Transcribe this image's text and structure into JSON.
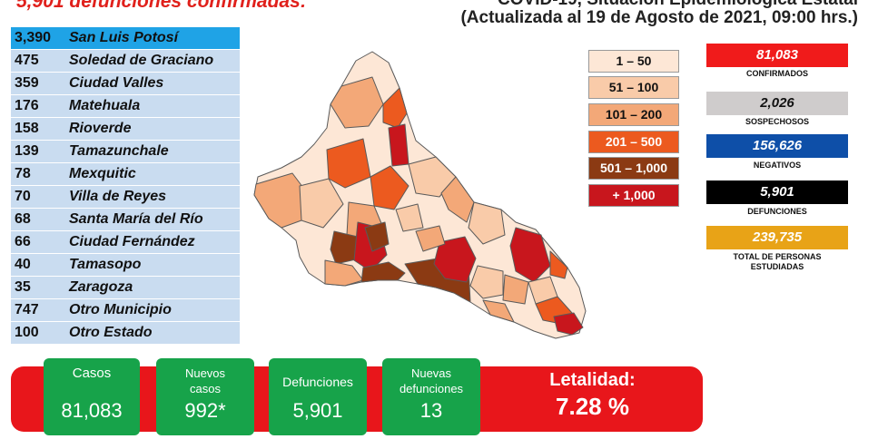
{
  "header": {
    "left_title": "5,901 defunciones confirmadas:",
    "right_line1": "COVID-19, Situación Epidemiológica Estatal",
    "right_line2": "(Actualizada al 19 de Agosto de 2021, 09:00 hrs.)"
  },
  "deaths_by_municipality": [
    {
      "count": "3,390",
      "name": "San Luis Potosí"
    },
    {
      "count": "475",
      "name": "Soledad de Graciano"
    },
    {
      "count": "359",
      "name": "Ciudad Valles"
    },
    {
      "count": "176",
      "name": "Matehuala"
    },
    {
      "count": "158",
      "name": "Rioverde"
    },
    {
      "count": "139",
      "name": "Tamazunchale"
    },
    {
      "count": "78",
      "name": "Mexquitic"
    },
    {
      "count": "70",
      "name": "Villa de Reyes"
    },
    {
      "count": "68",
      "name": "Santa María del Río"
    },
    {
      "count": "66",
      "name": "Ciudad Fernández"
    },
    {
      "count": "40",
      "name": "Tamasopo"
    },
    {
      "count": "35",
      "name": "Zaragoza"
    },
    {
      "count": "747",
      "name": "Otro Municipio"
    },
    {
      "count": "100",
      "name": "Otro Estado"
    }
  ],
  "legend": [
    {
      "label": "1 – 50",
      "color": "#fde7d6",
      "text_color": "#111111"
    },
    {
      "label": "51 – 100",
      "color": "#f9cba9",
      "text_color": "#111111"
    },
    {
      "label": "101 – 200",
      "color": "#f3a878",
      "text_color": "#111111"
    },
    {
      "label": "201 – 500",
      "color": "#ec5a1f",
      "text_color": "#ffffff"
    },
    {
      "label": "501 – 1,000",
      "color": "#8b3a13",
      "text_color": "#ffffff"
    },
    {
      "label": "+ 1,000",
      "color": "#c8161d",
      "text_color": "#ffffff"
    }
  ],
  "stats": [
    {
      "value": "81,083",
      "label": "CONFIRMADOS",
      "color": "#f01b1b",
      "text_color": "#ffffff"
    },
    {
      "value": "2,026",
      "label": "SOSPECHOSOS",
      "color": "#cfcccc",
      "text_color": "#111111"
    },
    {
      "value": "156,626",
      "label": "NEGATIVOS",
      "color": "#0e4fa8",
      "text_color": "#ffffff"
    },
    {
      "value": "5,901",
      "label": "DEFUNCIONES",
      "color": "#000000",
      "text_color": "#ffffff"
    },
    {
      "value": "239,735",
      "label": "TOTAL DE PERSONAS ESTUDIADAS",
      "color": "#e8a317",
      "text_color": "#ffffff"
    }
  ],
  "summary": {
    "casos_label": "Casos",
    "casos_value": "81,083",
    "nuevos_casos_label": "Nuevos casos",
    "nuevos_casos_value": "992*",
    "defunciones_label": "Defunciones",
    "defunciones_value": "5,901",
    "nuevas_defunciones_label": "Nuevas defunciones",
    "nuevas_defunciones_value": "13",
    "letalidad_label": "Letalidad:",
    "letalidad_value": "7.28 %"
  },
  "colors": {
    "accent_red": "#e8161b",
    "accent_green": "#17a34a",
    "map_outline": "#5a5a5a"
  }
}
